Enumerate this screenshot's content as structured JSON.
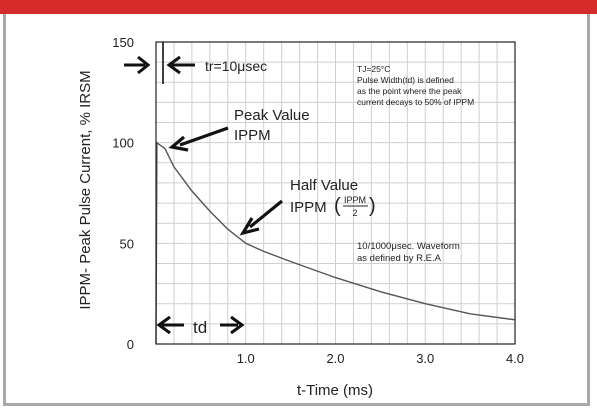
{
  "header": {
    "accent_color": "#d52b2b"
  },
  "chart_data": {
    "type": "line",
    "title": "",
    "xlabel": "t-Time (ms)",
    "ylabel": "IPPM- Peak Pulse Current, % IRSM",
    "xlim": [
      0,
      4.0
    ],
    "ylim": [
      0,
      150
    ],
    "x_ticks": [
      "1.0",
      "2.0",
      "3.0",
      "4.0"
    ],
    "y_ticks": [
      "0",
      "50",
      "100",
      "150"
    ],
    "grid": true,
    "series": [
      {
        "x": [
          0,
          0.01,
          0.1,
          0.2,
          0.4,
          0.6,
          0.8,
          1.0,
          1.2,
          1.5,
          2.0,
          2.5,
          3.0,
          3.5,
          4.0
        ],
        "y": [
          0,
          100,
          97,
          88,
          76,
          66,
          57,
          50,
          46,
          41,
          33,
          26,
          20,
          15,
          12
        ]
      }
    ],
    "annotations": {
      "tr": "tr=10μsec",
      "conditions_line1": "TJ=25°C",
      "conditions_line2": "Pulse Width(td) is defined",
      "conditions_line3": "as the point where the peak",
      "conditions_line4": "current decays to 50% of IPPM",
      "peak_line1": "Peak Value",
      "peak_line2": "IPPM",
      "half_line1": "Half Value",
      "half_line2": "IPPM",
      "half_frac_num": "IPPM",
      "half_frac_den": "2",
      "waveform_line1": "10/1000μsec. Waveform",
      "waveform_line2": "as defined by R.E.A",
      "td": "td"
    }
  }
}
